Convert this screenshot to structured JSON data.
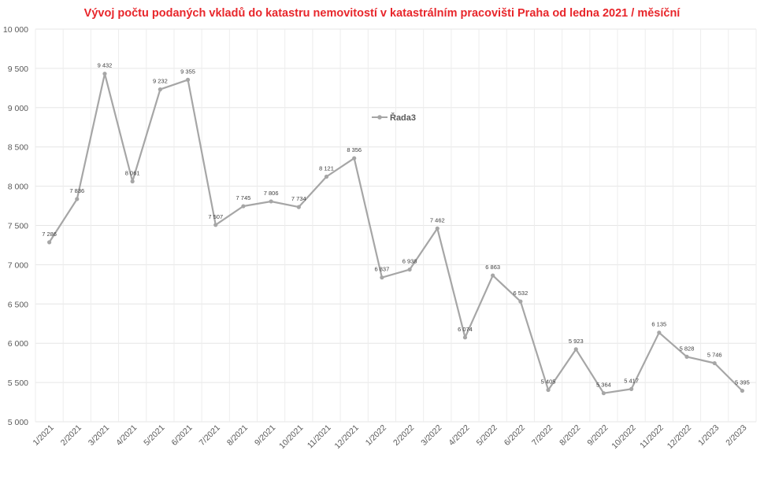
{
  "chart_data": {
    "type": "line",
    "title": "Vývoj počtu podaných vkladů do katastru nemovitostí v katastrálním pracovišti Praha od ledna 2021 / měsíční",
    "xlabel": "",
    "ylabel": "",
    "ylim": [
      5000,
      10000
    ],
    "yticks": [
      "10 000",
      "9 500",
      "9 000",
      "8 500",
      "8 000",
      "7 500",
      "7 000",
      "6 500",
      "6 000",
      "5 500",
      "5 000"
    ],
    "ytick_values": [
      10000,
      9500,
      9000,
      8500,
      8000,
      7500,
      7000,
      6500,
      6000,
      5500,
      5000
    ],
    "grid": true,
    "legend_position": "inside-top-center",
    "categories": [
      "1/2021",
      "2/2021",
      "3/2021",
      "4/2021",
      "5/2021",
      "6/2021",
      "7/2021",
      "8/2021",
      "9/2021",
      "10/2021",
      "11/2021",
      "12/2021",
      "1/2022",
      "2/2022",
      "3/2022",
      "4/2022",
      "5/2022",
      "6/2022",
      "7/2022",
      "8/2022",
      "9/2022",
      "10/2022",
      "11/2022",
      "12/2022",
      "1/2023",
      "2/2023"
    ],
    "series": [
      {
        "name": "Řada3",
        "color": "#a6a6a6",
        "values": [
          7286,
          7836,
          9432,
          8061,
          9232,
          9355,
          7507,
          7745,
          7806,
          7734,
          8121,
          8356,
          6837,
          6938,
          7462,
          6074,
          6863,
          6532,
          5405,
          5923,
          5364,
          5417,
          6135,
          5828,
          5746,
          5395
        ],
        "labels": [
          "7 286",
          "7 836",
          "9 432",
          "8 061",
          "9 232",
          "9 355",
          "7 507",
          "7 745",
          "7 806",
          "7 734",
          "8 121",
          "8 356",
          "6 837",
          "6 938",
          "7 462",
          "6 074",
          "6 863",
          "6 532",
          "5 405",
          "5 923",
          "5 364",
          "5 417",
          "6 135",
          "5 828",
          "5 746",
          "5 395"
        ]
      }
    ]
  }
}
